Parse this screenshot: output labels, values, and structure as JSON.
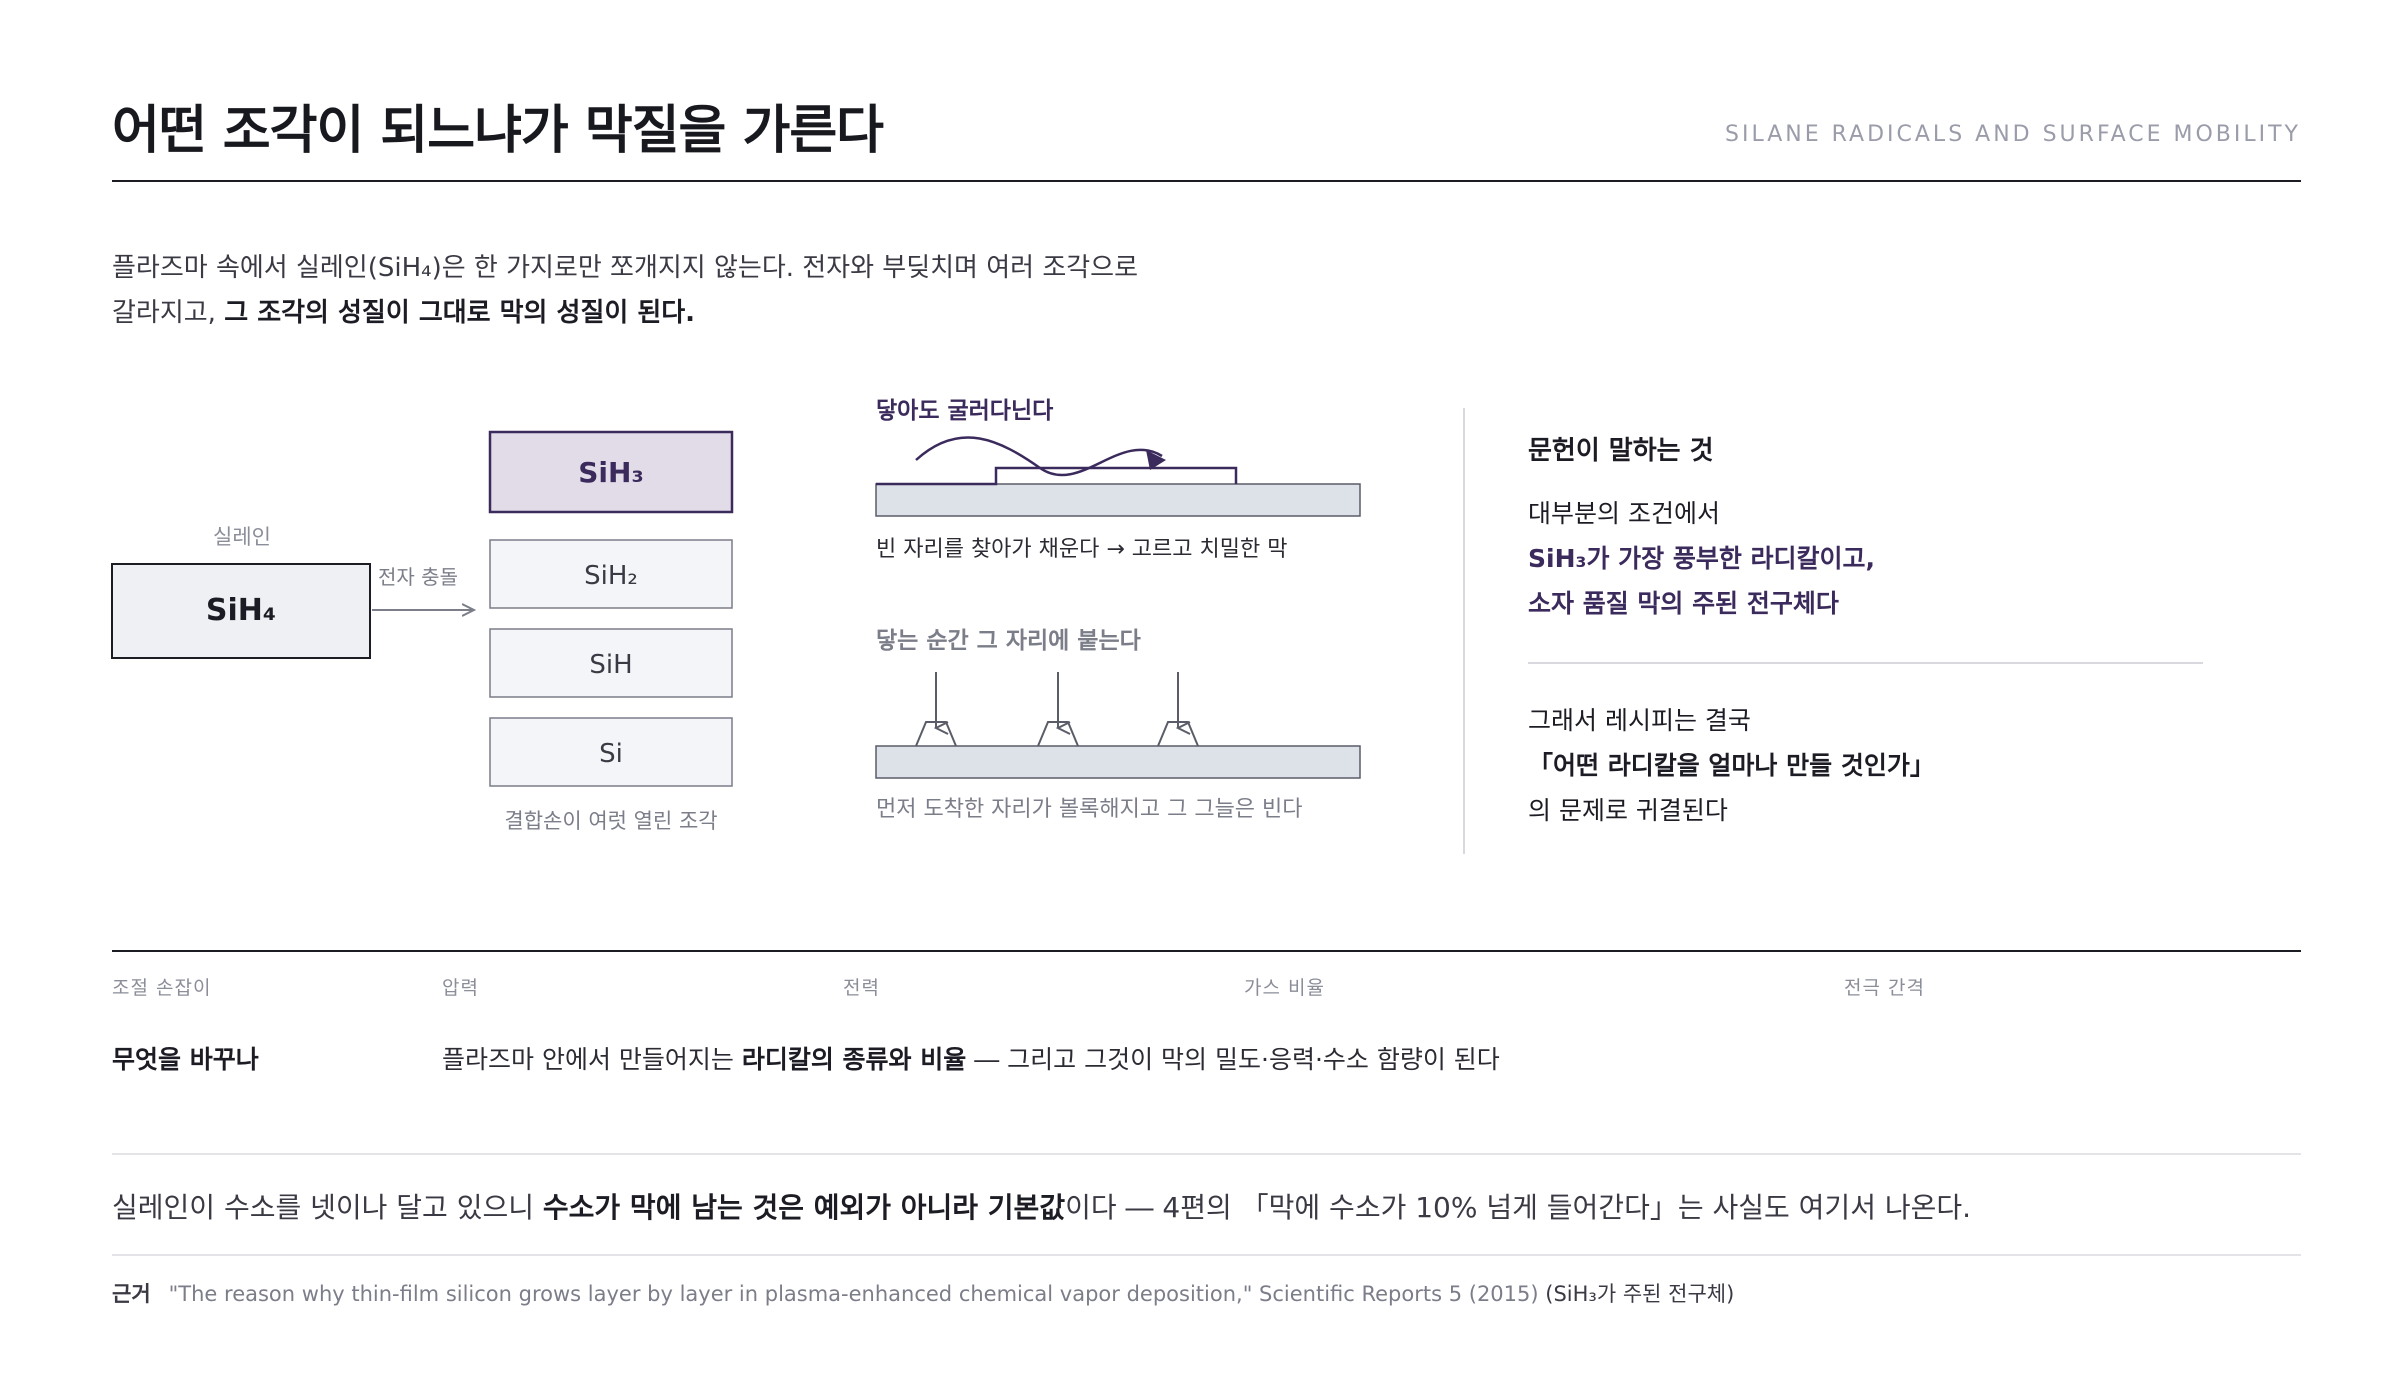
{
  "header": {
    "title": "어떤 조각이 되느냐가 막질을 가른다",
    "subtitle": "SILANE RADICALS AND SURFACE MOBILITY"
  },
  "intro": {
    "line1": "플라즈마 속에서 실레인(SiH₄)은 한 가지로만 쪼개지지 않는다. 전자와 부딪치며 여러 조각으로",
    "line2_plain": "갈라지고, ",
    "line2_bold": "그 조각의 성질이 그대로 막의 성질이 된다."
  },
  "diagram": {
    "source_label": "실레인",
    "source_formula": "SiH₄",
    "arrow_label": "전자 충돌",
    "fragments": [
      "SiH₃",
      "SiH₂",
      "SiH",
      "Si"
    ],
    "fragments_caption": "결합손이 여럿 열린 조각",
    "mobile": {
      "title": "닿아도 굴러다닌다",
      "caption": "빈 자리를 찾아가 채운다 → 고르고 치밀한 막"
    },
    "sticky": {
      "title": "닿는 순간 그 자리에 붙는다",
      "caption": "먼저 도착한 자리가 볼록해지고 그 그늘은 빈다"
    }
  },
  "side": {
    "heading": "문헌이 말하는 것",
    "line1": "대부분의 조건에서",
    "accent1": "SiH₃가 가장 풍부한 라디칼이고,",
    "accent2": "소자 품질 막의 주된 전구체다",
    "line2": "그래서 레시피는 결국",
    "strong": "「어떤 라디칼을 얼마나 만들 것인가」",
    "line3": "의 문제로 귀결된다"
  },
  "knobs": {
    "labels": [
      "조절 손잡이",
      "압력",
      "전력",
      "가스 비율",
      "전극 간격"
    ],
    "question": "무엇을 바꾸나",
    "answer_plain1": "플라즈마 안에서 만들어지는 ",
    "answer_bold": "라디칼의 종류와 비율",
    "answer_plain2": " ― 그리고 그것이 막의 밀도·응력·수소 함량이 된다"
  },
  "closing": {
    "plain1": "실레인이 수소를 넷이나 달고 있으니 ",
    "bold": "수소가 막에 남는 것은 예외가 아니라 기본값",
    "plain2": "이다 ― 4편의 「막에 수소가 10% 넘게 들어간다」는 사실도 여기서 나온다."
  },
  "reference": {
    "label": "근거",
    "citation": "\"The reason why thin-film silicon grows layer by layer in plasma-enhanced chemical vapor deposition,\" Scientific Reports 5 (2015)",
    "note": "(SiH₃가 주된 전구체)"
  },
  "colors": {
    "ink": "#1c1c24",
    "accent": "#3b2a5c",
    "highlight_fill": "#e2dbe8",
    "box_fill": "#f4f5f8",
    "substrate_fill": "#dde1e8",
    "muted": "#8b8d99"
  }
}
